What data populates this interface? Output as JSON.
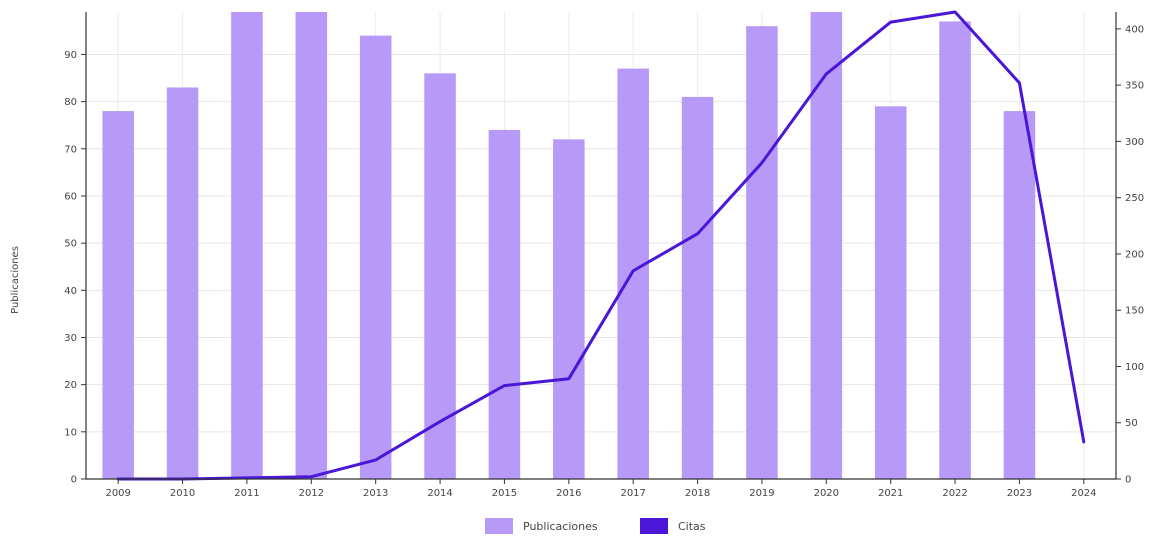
{
  "chart_data": {
    "type": "bar",
    "categories": [
      "2009",
      "2010",
      "2011",
      "2012",
      "2013",
      "2014",
      "2015",
      "2016",
      "2017",
      "2018",
      "2019",
      "2020",
      "2021",
      "2022",
      "2023",
      "2024"
    ],
    "series": [
      {
        "name": "Publicaciones",
        "kind": "bar",
        "axis": "left",
        "color": "#b79af7",
        "values": [
          78,
          83,
          100,
          100,
          94,
          86,
          74,
          72,
          87,
          81,
          96,
          100,
          79,
          97,
          78,
          null
        ]
      },
      {
        "name": "Citas",
        "kind": "line",
        "axis": "right",
        "color": "#4a16d8",
        "values": [
          0,
          0,
          1,
          2,
          17,
          51,
          83,
          89,
          185,
          218,
          281,
          360,
          406,
          415,
          352,
          33
        ]
      }
    ],
    "ylabel": "Publicaciones",
    "ylim": [
      0,
      99
    ],
    "y_ticks": [
      0,
      10,
      20,
      30,
      40,
      50,
      60,
      70,
      80,
      90
    ],
    "y2lim": [
      0,
      415
    ],
    "y2_ticks": [
      0,
      50,
      100,
      150,
      200,
      250,
      300,
      350,
      400
    ],
    "grid": true,
    "legend_position": "bottom-center"
  }
}
